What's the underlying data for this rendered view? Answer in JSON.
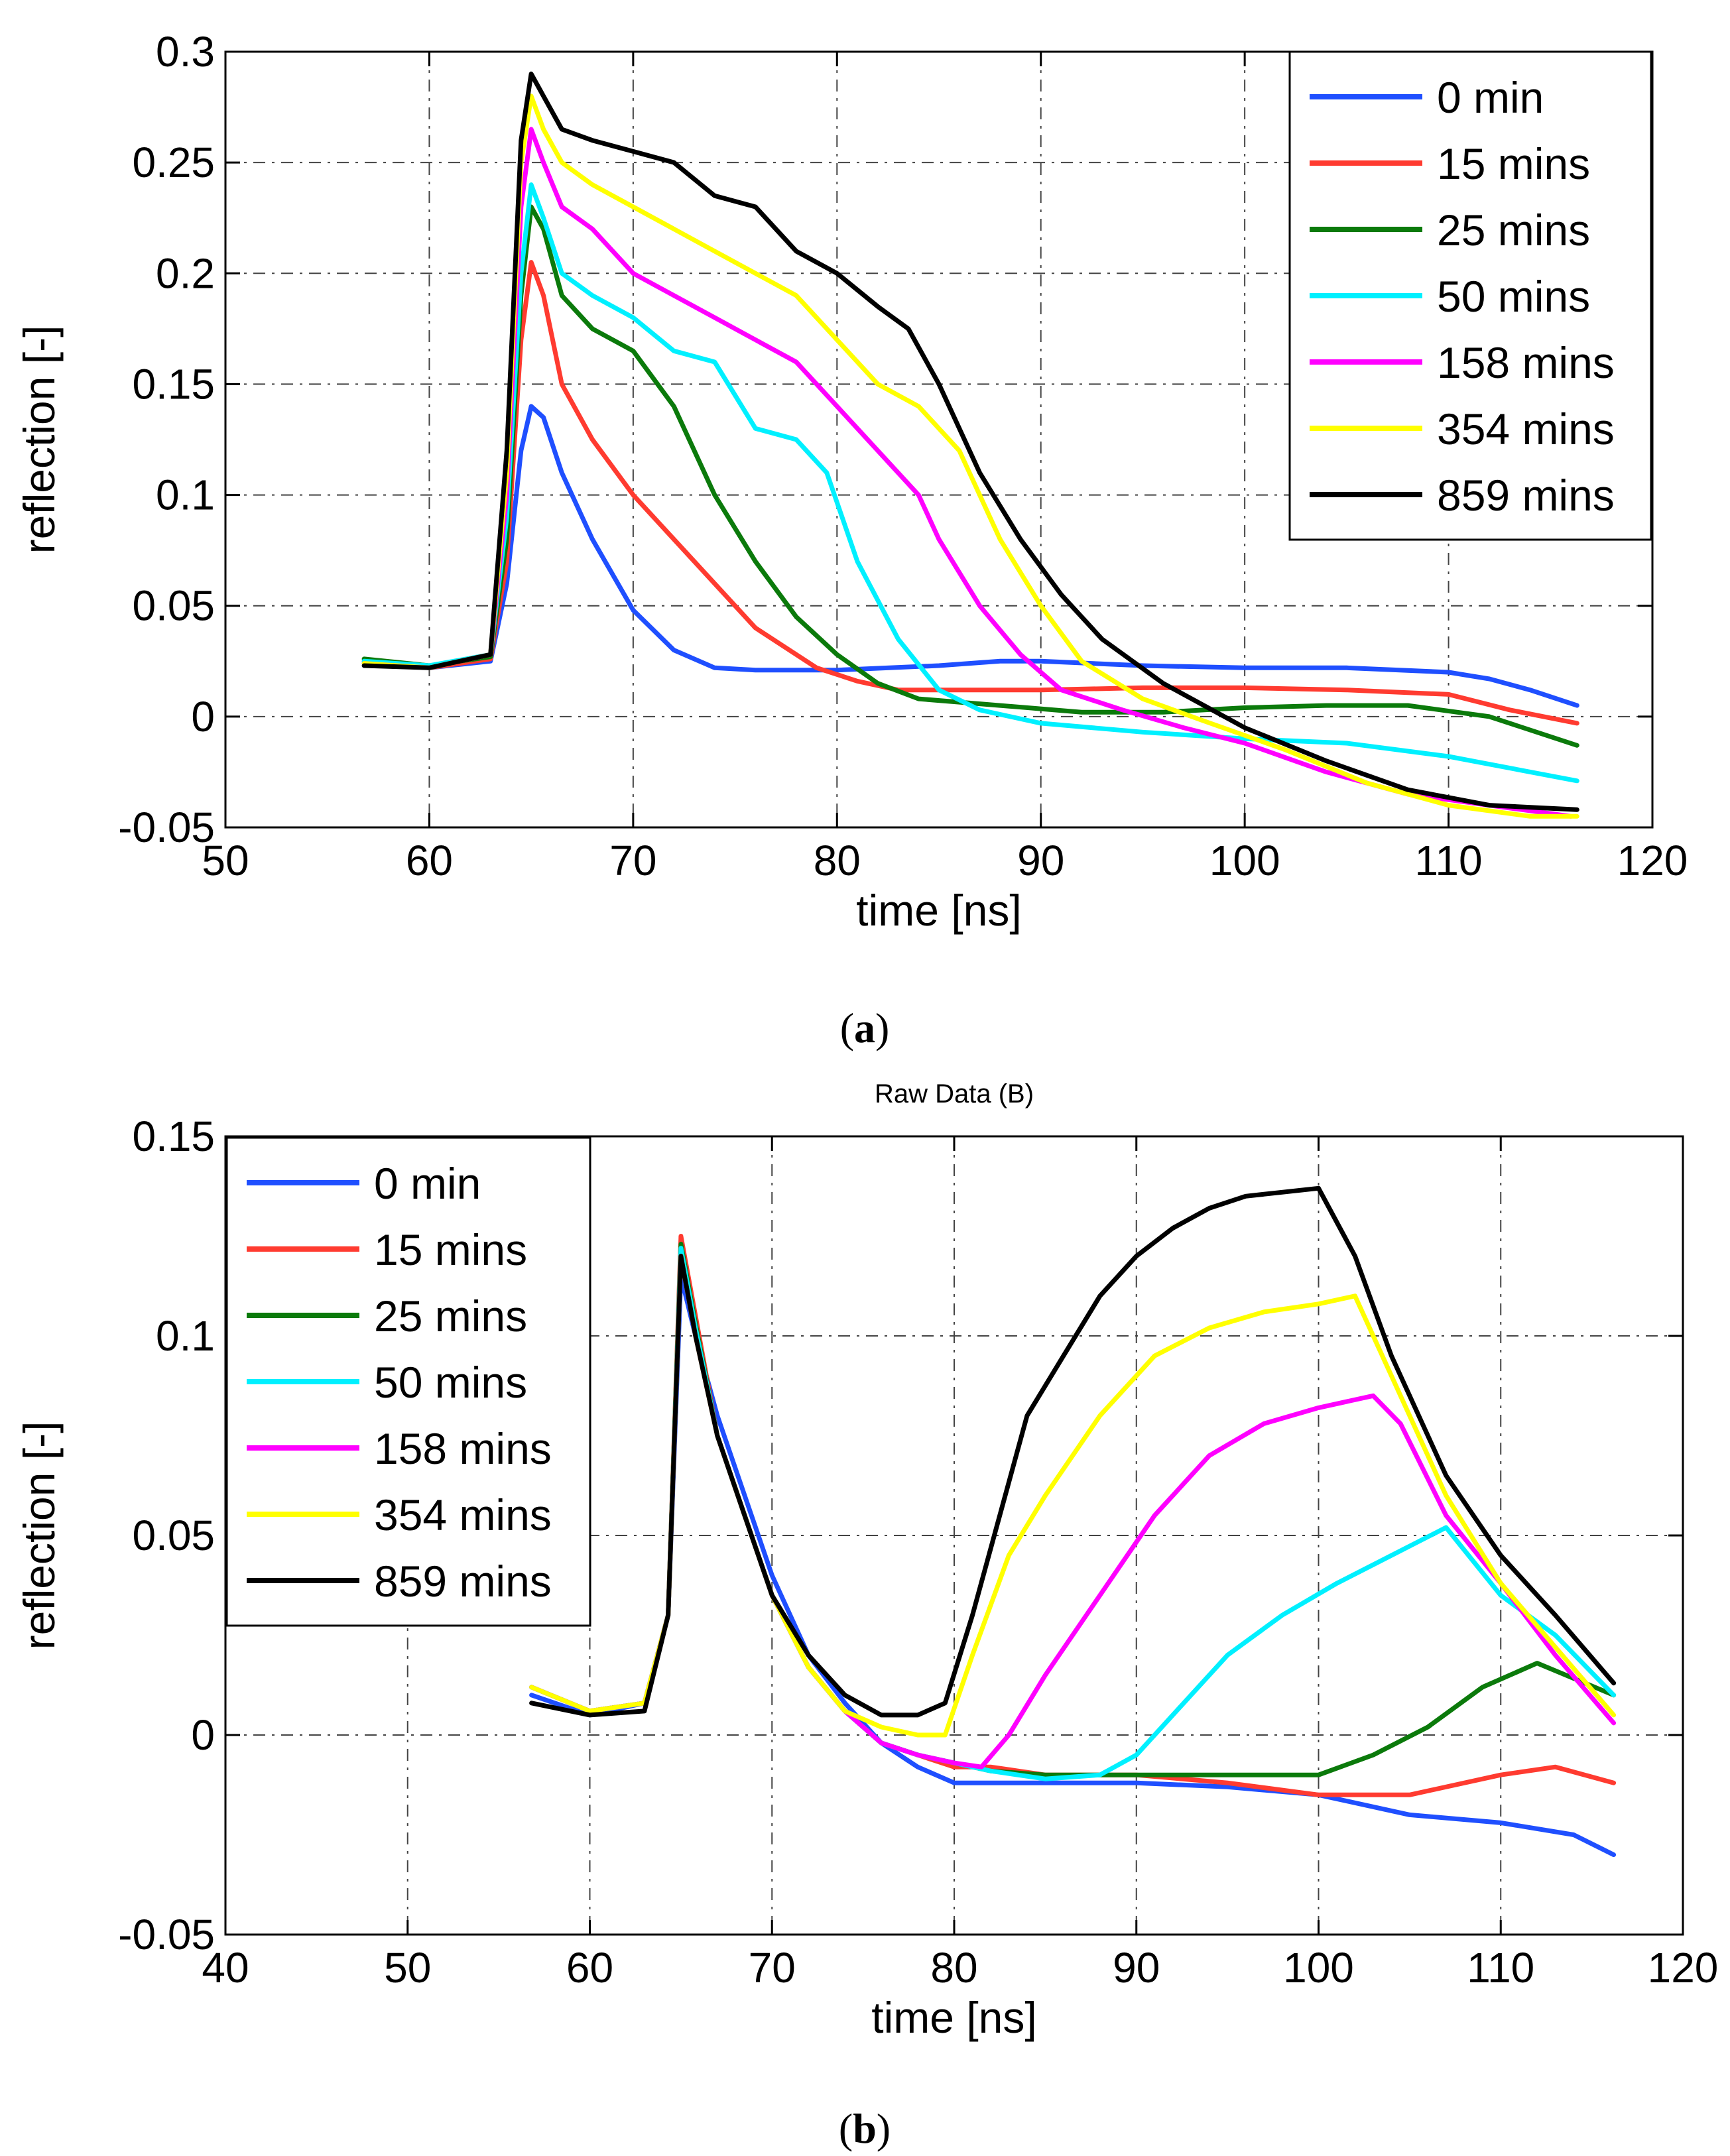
{
  "panels": [
    {
      "label_open": "(",
      "label_letter": "a",
      "label_close": ")"
    },
    {
      "label_open": "(",
      "label_letter": "b",
      "label_close": ")"
    }
  ],
  "chart_data": [
    {
      "type": "line",
      "title": "",
      "xlabel": "time [ns]",
      "ylabel": "reflection [-]",
      "xlim": [
        50,
        120
      ],
      "ylim": [
        -0.05,
        0.3
      ],
      "xticks": [
        50,
        60,
        70,
        80,
        90,
        100,
        110,
        120
      ],
      "yticks": [
        -0.05,
        0,
        0.05,
        0.1,
        0.15,
        0.2,
        0.25,
        0.3
      ],
      "xtick_labels": [
        "50",
        "60",
        "70",
        "80",
        "90",
        "100",
        "110",
        "120"
      ],
      "ytick_labels": [
        "-0.05",
        "0",
        "0.05",
        "0.1",
        "0.15",
        "0.2",
        "0.25",
        "0.3"
      ],
      "grid": true,
      "legend_position": "top-right",
      "series": [
        {
          "name": "0 min",
          "color": "#1f4fff",
          "x": [
            56.8,
            60,
            63,
            63.8,
            64.5,
            65,
            65.6,
            66.5,
            68,
            70,
            72,
            74,
            76,
            80,
            85,
            88,
            90,
            95,
            100,
            105,
            110,
            112,
            114,
            116.3
          ],
          "y": [
            0.024,
            0.022,
            0.025,
            0.06,
            0.12,
            0.14,
            0.135,
            0.11,
            0.08,
            0.048,
            0.03,
            0.022,
            0.021,
            0.021,
            0.023,
            0.025,
            0.025,
            0.023,
            0.022,
            0.022,
            0.02,
            0.017,
            0.012,
            0.005
          ]
        },
        {
          "name": "15 mins",
          "color": "#ff3b30",
          "x": [
            56.8,
            60,
            63,
            63.8,
            64.5,
            65,
            65.6,
            66.5,
            68,
            70,
            73,
            76,
            79,
            81,
            83,
            86,
            90,
            95,
            100,
            105,
            110,
            113,
            116.3
          ],
          "y": [
            0.025,
            0.022,
            0.026,
            0.07,
            0.17,
            0.205,
            0.19,
            0.15,
            0.125,
            0.1,
            0.07,
            0.04,
            0.022,
            0.016,
            0.012,
            0.012,
            0.012,
            0.013,
            0.013,
            0.012,
            0.01,
            0.003,
            -0.003
          ]
        },
        {
          "name": "25 mins",
          "color": "#0b7a0b",
          "x": [
            56.8,
            60,
            63,
            63.8,
            64.5,
            65,
            65.6,
            66.5,
            68,
            70,
            72,
            74,
            76,
            78,
            80,
            82,
            84,
            88,
            92,
            96,
            100,
            104,
            108,
            112,
            116.3
          ],
          "y": [
            0.026,
            0.023,
            0.027,
            0.08,
            0.19,
            0.23,
            0.22,
            0.19,
            0.175,
            0.165,
            0.14,
            0.1,
            0.07,
            0.045,
            0.028,
            0.015,
            0.008,
            0.005,
            0.002,
            0.002,
            0.004,
            0.005,
            0.005,
            0.0,
            -0.013
          ]
        },
        {
          "name": "50 mins",
          "color": "#00f0ff",
          "x": [
            56.8,
            60,
            63,
            63.8,
            64.5,
            65,
            65.6,
            66.5,
            68,
            70,
            72,
            74,
            76,
            78,
            79.5,
            81,
            83,
            85,
            87,
            90,
            95,
            100,
            105,
            110,
            116.3
          ],
          "y": [
            0.025,
            0.023,
            0.028,
            0.09,
            0.2,
            0.24,
            0.225,
            0.2,
            0.19,
            0.18,
            0.165,
            0.16,
            0.13,
            0.125,
            0.11,
            0.07,
            0.035,
            0.012,
            0.003,
            -0.003,
            -0.007,
            -0.01,
            -0.012,
            -0.018,
            -0.029
          ]
        },
        {
          "name": "158 mins",
          "color": "#ff00ff",
          "x": [
            56.8,
            60,
            63,
            63.8,
            64.5,
            65,
            65.6,
            66.5,
            68,
            70,
            72,
            74,
            76,
            78,
            80,
            82,
            84,
            85,
            87,
            89,
            91,
            94,
            97,
            100,
            104,
            108,
            112,
            116
          ],
          "y": [
            0.024,
            0.022,
            0.028,
            0.1,
            0.23,
            0.265,
            0.25,
            0.23,
            0.22,
            0.2,
            0.19,
            0.18,
            0.17,
            0.16,
            0.14,
            0.12,
            0.1,
            0.08,
            0.05,
            0.028,
            0.012,
            0.003,
            -0.005,
            -0.012,
            -0.025,
            -0.035,
            -0.04,
            -0.045
          ]
        },
        {
          "name": "354 mins",
          "color": "#ffff00",
          "x": [
            56.8,
            60,
            63,
            63.8,
            64.5,
            65,
            65.6,
            66.5,
            68,
            70,
            72,
            74,
            76,
            78,
            80,
            82,
            84,
            86,
            88,
            90,
            92,
            95,
            98,
            102,
            106,
            110,
            114,
            116.3
          ],
          "y": [
            0.024,
            0.022,
            0.028,
            0.11,
            0.25,
            0.28,
            0.265,
            0.25,
            0.24,
            0.23,
            0.22,
            0.21,
            0.2,
            0.19,
            0.17,
            0.15,
            0.14,
            0.12,
            0.08,
            0.05,
            0.025,
            0.008,
            -0.002,
            -0.015,
            -0.03,
            -0.04,
            -0.045,
            -0.045
          ]
        },
        {
          "name": "859 mins",
          "color": "#000000",
          "x": [
            56.8,
            60,
            63,
            63.8,
            64.5,
            65,
            65.6,
            66.5,
            68,
            70,
            72,
            74,
            76,
            78,
            80,
            82,
            83.5,
            85,
            87,
            89,
            91,
            93,
            96,
            100,
            104,
            108,
            112,
            116.3
          ],
          "y": [
            0.023,
            0.022,
            0.028,
            0.12,
            0.26,
            0.29,
            0.28,
            0.265,
            0.26,
            0.255,
            0.25,
            0.235,
            0.23,
            0.21,
            0.2,
            0.185,
            0.175,
            0.15,
            0.11,
            0.08,
            0.055,
            0.035,
            0.015,
            -0.005,
            -0.02,
            -0.033,
            -0.04,
            -0.042
          ]
        }
      ]
    },
    {
      "type": "line",
      "title": "Raw Data (B)",
      "xlabel": "time [ns]",
      "ylabel": "reflection [-]",
      "xlim": [
        40,
        120
      ],
      "ylim": [
        -0.05,
        0.15
      ],
      "xticks": [
        40,
        50,
        60,
        70,
        80,
        90,
        100,
        110,
        120
      ],
      "yticks": [
        -0.05,
        0,
        0.05,
        0.1,
        0.15
      ],
      "xtick_labels": [
        "40",
        "50",
        "60",
        "70",
        "80",
        "90",
        "100",
        "110",
        "120"
      ],
      "ytick_labels": [
        "-0.05",
        "0",
        "0.05",
        "0.1",
        "0.15"
      ],
      "grid": true,
      "legend_position": "top-left",
      "series": [
        {
          "name": "0 min",
          "color": "#1f4fff",
          "x": [
            56.8,
            60,
            63,
            64.3,
            65,
            65.8,
            67,
            68.5,
            70,
            72,
            74,
            76,
            78,
            80,
            85,
            90,
            95,
            100,
            105,
            110,
            114,
            116.2
          ],
          "y": [
            0.01,
            0.005,
            0.008,
            0.03,
            0.115,
            0.1,
            0.08,
            0.06,
            0.04,
            0.02,
            0.008,
            -0.002,
            -0.008,
            -0.012,
            -0.012,
            -0.012,
            -0.013,
            -0.015,
            -0.02,
            -0.022,
            -0.025,
            -0.03
          ]
        },
        {
          "name": "15 mins",
          "color": "#ff3b30",
          "x": [
            56.8,
            60,
            63,
            64.3,
            65,
            65.8,
            67,
            68.5,
            70,
            72,
            74,
            76,
            78,
            80,
            82,
            85,
            90,
            95,
            100,
            105,
            110,
            113,
            116.2
          ],
          "y": [
            0.012,
            0.006,
            0.008,
            0.03,
            0.125,
            0.105,
            0.075,
            0.055,
            0.035,
            0.017,
            0.006,
            -0.002,
            -0.005,
            -0.008,
            -0.008,
            -0.01,
            -0.01,
            -0.012,
            -0.015,
            -0.015,
            -0.01,
            -0.008,
            -0.012
          ]
        },
        {
          "name": "25 mins",
          "color": "#0b7a0b",
          "x": [
            56.8,
            60,
            63,
            64.3,
            65,
            65.8,
            67,
            68.5,
            70,
            72,
            74,
            76,
            78,
            80,
            82,
            85,
            90,
            95,
            100,
            103,
            106,
            109,
            112,
            116.2
          ],
          "y": [
            0.012,
            0.006,
            0.008,
            0.03,
            0.123,
            0.103,
            0.075,
            0.055,
            0.035,
            0.017,
            0.006,
            -0.002,
            -0.005,
            -0.007,
            -0.009,
            -0.01,
            -0.01,
            -0.01,
            -0.01,
            -0.005,
            0.002,
            0.012,
            0.018,
            0.01
          ]
        },
        {
          "name": "50 mins",
          "color": "#00f0ff",
          "x": [
            56.8,
            60,
            63,
            64.3,
            65,
            65.8,
            67,
            68.5,
            70,
            72,
            74,
            76,
            78,
            80,
            82,
            85,
            88,
            90,
            92,
            95,
            98,
            101,
            104,
            107,
            110,
            113,
            116.2
          ],
          "y": [
            0.012,
            0.006,
            0.008,
            0.03,
            0.122,
            0.102,
            0.075,
            0.055,
            0.035,
            0.017,
            0.006,
            -0.002,
            -0.005,
            -0.007,
            -0.009,
            -0.011,
            -0.01,
            -0.005,
            0.005,
            0.02,
            0.03,
            0.038,
            0.045,
            0.052,
            0.035,
            0.025,
            0.01
          ]
        },
        {
          "name": "158 mins",
          "color": "#ff00ff",
          "x": [
            56.8,
            60,
            63,
            64.3,
            65,
            65.8,
            67,
            68.5,
            70,
            72,
            74,
            76,
            78,
            80,
            81.5,
            83,
            85,
            88,
            91,
            94,
            97,
            100,
            103,
            104.5,
            107,
            110,
            113,
            116.2
          ],
          "y": [
            0.012,
            0.006,
            0.008,
            0.03,
            0.12,
            0.1,
            0.075,
            0.055,
            0.035,
            0.017,
            0.006,
            -0.002,
            -0.005,
            -0.007,
            -0.008,
            0.0,
            0.015,
            0.035,
            0.055,
            0.07,
            0.078,
            0.082,
            0.085,
            0.078,
            0.055,
            0.038,
            0.02,
            0.003
          ]
        },
        {
          "name": "354 mins",
          "color": "#ffff00",
          "x": [
            56.8,
            60,
            63,
            64.3,
            65,
            65.8,
            67,
            68.5,
            70,
            72,
            74,
            76,
            78,
            79.5,
            81,
            83,
            85,
            88,
            91,
            94,
            97,
            100,
            102,
            104,
            107,
            110,
            113,
            116.2
          ],
          "y": [
            0.012,
            0.006,
            0.008,
            0.03,
            0.12,
            0.1,
            0.075,
            0.055,
            0.035,
            0.017,
            0.006,
            0.002,
            0.0,
            0.0,
            0.02,
            0.045,
            0.06,
            0.08,
            0.095,
            0.102,
            0.106,
            0.108,
            0.11,
            0.09,
            0.06,
            0.038,
            0.022,
            0.005
          ]
        },
        {
          "name": "859 mins",
          "color": "#000000",
          "x": [
            56.8,
            60,
            63,
            64.3,
            65,
            65.8,
            67,
            68.5,
            70,
            72,
            74,
            76,
            78,
            79.5,
            81,
            82.5,
            84,
            86,
            88,
            90,
            92,
            94,
            96,
            98,
            100,
            102,
            104,
            107,
            110,
            113,
            116.2
          ],
          "y": [
            0.008,
            0.005,
            0.006,
            0.03,
            0.12,
            0.1,
            0.075,
            0.055,
            0.035,
            0.02,
            0.01,
            0.005,
            0.005,
            0.008,
            0.03,
            0.055,
            0.08,
            0.095,
            0.11,
            0.12,
            0.127,
            0.132,
            0.135,
            0.136,
            0.137,
            0.12,
            0.095,
            0.065,
            0.045,
            0.03,
            0.013
          ]
        }
      ]
    }
  ]
}
